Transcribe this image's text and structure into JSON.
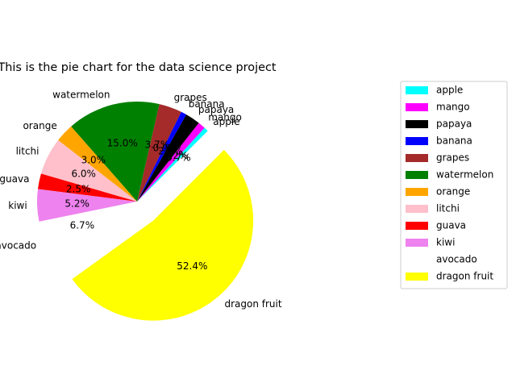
{
  "chart_data": {
    "type": "pie",
    "title": "This is the pie chart for the data science project",
    "legend_position": "right",
    "categories": [
      "apple",
      "mango",
      "papaya",
      "banana",
      "grapes",
      "watermelon",
      "orange",
      "litchi",
      "guava",
      "kiwi",
      "avocado",
      "dragon fruit"
    ],
    "values": [
      0.7,
      1.2,
      2.4,
      0.9,
      3.7,
      15.0,
      3.0,
      6.0,
      2.5,
      5.2,
      6.7,
      52.4
    ],
    "pct_labels": [
      "0.7%",
      "1.2%",
      "2.4%",
      "0.9%",
      "3.7%",
      "15.0%",
      "3.0%",
      "6.0%",
      "2.5%",
      "5.2%",
      "6.7%",
      "52.4%"
    ],
    "colors": [
      "#00ffff",
      "#ff00ff",
      "#000000",
      "#0000ff",
      "#a52a2a",
      "#008000",
      "#ffa500",
      "#ffc0cb",
      "#ff0000",
      "#ee82ee",
      "#ffffff",
      "#ffff00"
    ],
    "start_angle_deg": 45,
    "explode": [
      0,
      0,
      0,
      0,
      0,
      0,
      0,
      0,
      0,
      0,
      0,
      0.25
    ]
  }
}
